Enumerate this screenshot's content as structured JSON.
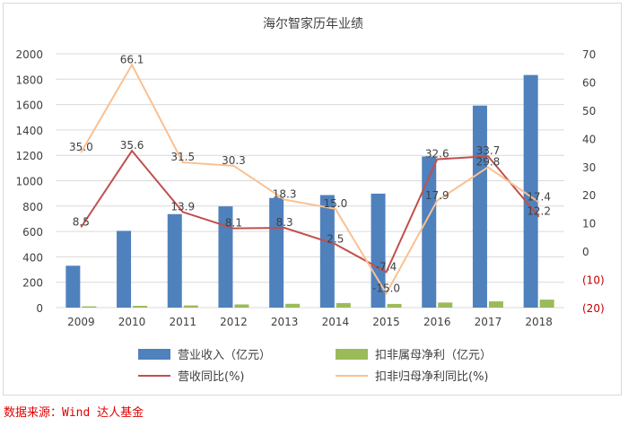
{
  "chart_data": {
    "type": "bar",
    "title": "海尔智家历年业绩",
    "categories": [
      "2009",
      "2010",
      "2011",
      "2012",
      "2013",
      "2014",
      "2015",
      "2016",
      "2017",
      "2018"
    ],
    "left_axis": {
      "ylim": [
        0,
        2000
      ],
      "ticks": [
        "0",
        "200",
        "400",
        "600",
        "800",
        "1000",
        "1200",
        "1400",
        "1600",
        "1800",
        "2000"
      ]
    },
    "right_axis": {
      "ylim": [
        -20,
        70
      ],
      "ticks": [
        "(20)",
        "(10)",
        "0",
        "10",
        "20",
        "30",
        "40",
        "50",
        "60",
        "70"
      ],
      "negative_color": "#c00000",
      "positive_color": "#404040"
    },
    "series": [
      {
        "name": "营业收入（亿元）",
        "kind": "bar",
        "axis": "left",
        "color": "#4f81bd",
        "values": [
          330,
          605,
          737,
          798,
          864,
          887,
          898,
          1191,
          1592,
          1833
        ]
      },
      {
        "name": "扣非属母净利（亿元）",
        "kind": "bar",
        "axis": "left",
        "color": "#9bbb59",
        "values": [
          10,
          14,
          17,
          25,
          30,
          36,
          29,
          40,
          49,
          63
        ]
      },
      {
        "name": "营收同比(%)",
        "kind": "line",
        "axis": "right",
        "color": "#c0504d",
        "values": [
          8.5,
          35.6,
          13.9,
          8.1,
          8.3,
          2.5,
          -7.4,
          32.6,
          33.7,
          12.2
        ],
        "labels": [
          "8.5",
          "35.6",
          "13.9",
          "8.1",
          "8.3",
          "2.5",
          "-7.4",
          "32.6",
          "33.7",
          "12.2"
        ]
      },
      {
        "name": "扣非归母净利同比(%)",
        "kind": "line",
        "axis": "right",
        "color": "#fac090",
        "values": [
          35.0,
          66.1,
          31.5,
          30.3,
          18.3,
          15.0,
          -15.0,
          17.9,
          29.8,
          17.4
        ],
        "labels": [
          "35.0",
          "66.1",
          "31.5",
          "30.3",
          "18.3",
          "15.0",
          "-15.0",
          "17.9",
          "29.8",
          "17.4"
        ]
      }
    ],
    "legend": [
      "营业收入（亿元）",
      "扣非属母净利（亿元）",
      "营收同比(%)",
      "扣非归母净利同比(%)"
    ],
    "legend_position": "bottom",
    "grid": true
  },
  "source": {
    "prefix": "数据来源：",
    "text": "Wind 达人基金"
  }
}
